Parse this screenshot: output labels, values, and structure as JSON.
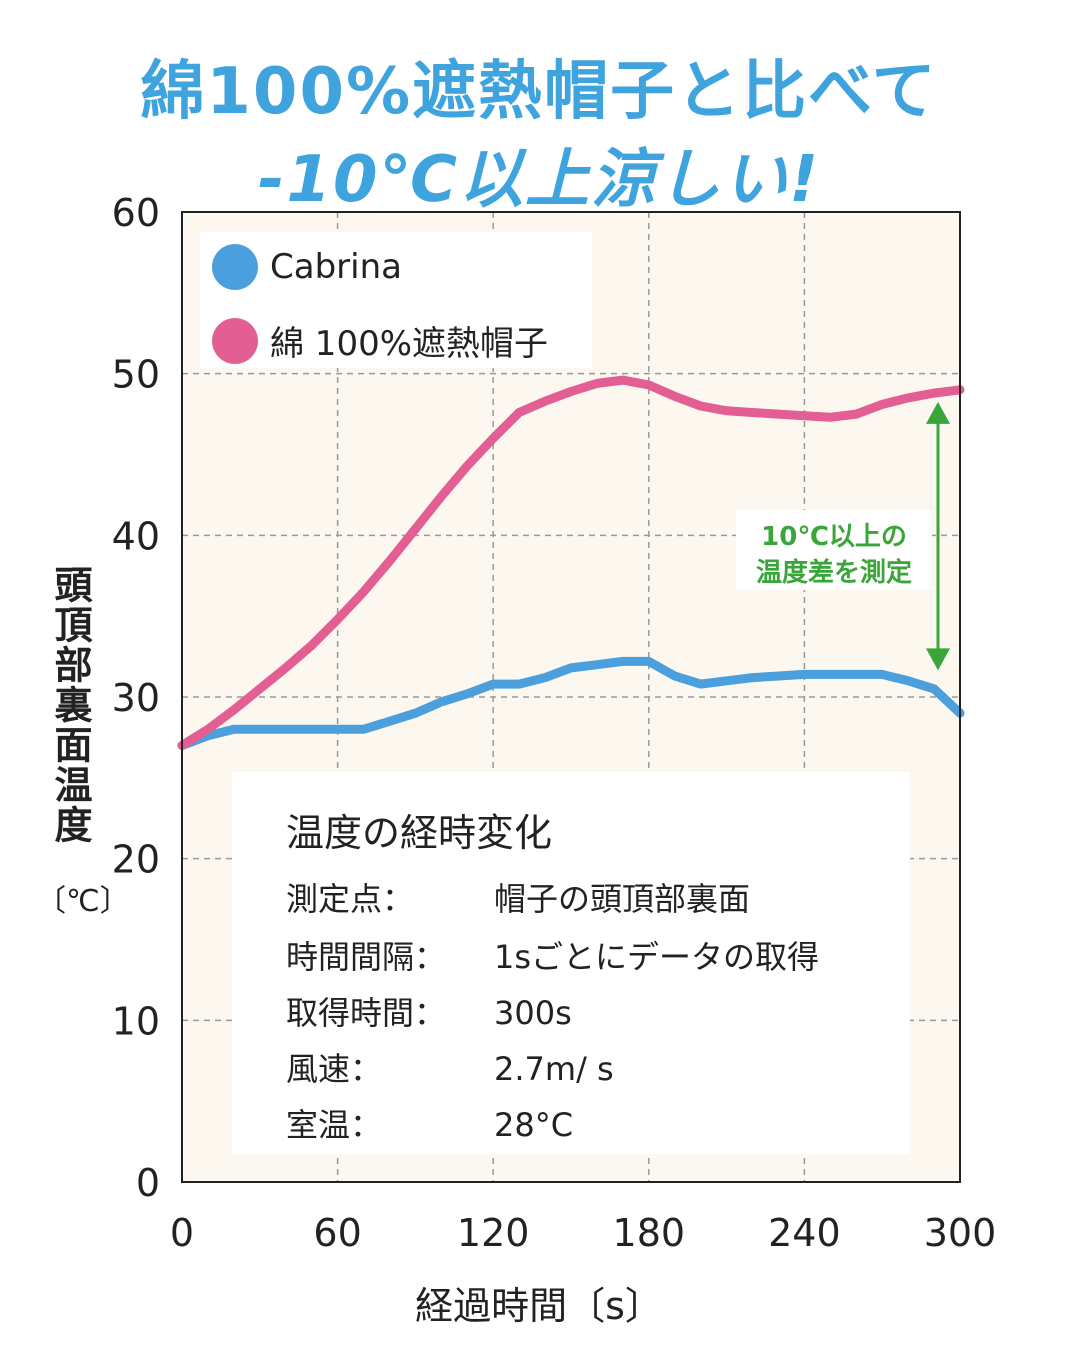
{
  "headline": {
    "line1": "綿100%遮熱帽子と比べて",
    "line2": "-10℃以上涼しい!"
  },
  "chart_data": {
    "type": "line",
    "x": [
      0,
      10,
      20,
      30,
      40,
      50,
      60,
      70,
      80,
      90,
      100,
      110,
      120,
      130,
      140,
      150,
      160,
      170,
      180,
      190,
      200,
      210,
      220,
      230,
      240,
      250,
      260,
      270,
      280,
      290,
      300
    ],
    "series": [
      {
        "name": "Cabrina",
        "color": "#4a9fdc",
        "values": [
          27.0,
          27.6,
          28.0,
          28.0,
          28.0,
          28.0,
          28.0,
          28.0,
          28.5,
          29.0,
          29.7,
          30.2,
          30.8,
          30.8,
          31.2,
          31.8,
          32.0,
          32.2,
          32.2,
          31.3,
          30.8,
          31.0,
          31.2,
          31.3,
          31.4,
          31.4,
          31.4,
          31.4,
          31.0,
          30.5,
          29.0
        ]
      },
      {
        "name": "綿 100%遮熱帽子",
        "color": "#e35f93",
        "values": [
          27.0,
          28.0,
          29.2,
          30.5,
          31.8,
          33.2,
          34.8,
          36.5,
          38.4,
          40.4,
          42.4,
          44.3,
          46.0,
          47.6,
          48.3,
          48.9,
          49.4,
          49.6,
          49.3,
          48.6,
          48.0,
          47.7,
          47.6,
          47.5,
          47.4,
          47.3,
          47.5,
          48.1,
          48.5,
          48.8,
          49.0
        ]
      }
    ],
    "ylim": [
      0,
      60
    ],
    "xlim": [
      0,
      300
    ],
    "yticks": [
      0,
      10,
      20,
      30,
      40,
      50,
      60
    ],
    "xticks": [
      0,
      60,
      120,
      180,
      240,
      300
    ],
    "ylabel": "頭頂部裏面温度",
    "yunit": "〔℃〕",
    "xlabel": "経過時間〔s〕",
    "grid": true,
    "legend_position": "top-left",
    "annotation": {
      "line1": "10℃以上の",
      "line2": "温度差を測定",
      "color": "#3aa63a"
    }
  },
  "info": {
    "title": "温度の経時変化",
    "rows": [
      {
        "key": "測定点：",
        "value": "帽子の頭頂部裏面"
      },
      {
        "key": "時間間隔：",
        "value": "1sごとにデータの取得"
      },
      {
        "key": "取得時間：",
        "value": "300s"
      },
      {
        "key": "風速：",
        "value": "2.7m/ s"
      },
      {
        "key": "室温：",
        "value": "28°C"
      }
    ]
  },
  "colors": {
    "headline": "#3fa3dd",
    "plot_background": "#fcf8f0",
    "grid": "#999999"
  }
}
